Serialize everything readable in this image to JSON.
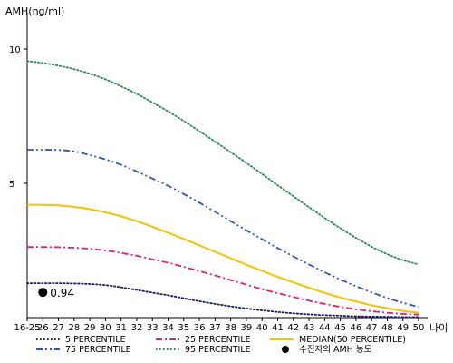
{
  "chart_data": {
    "type": "line",
    "ylabel": "AMH(ng/ml)",
    "xlabel": "나이",
    "categories": [
      "16-25",
      "26",
      "27",
      "28",
      "29",
      "30",
      "31",
      "32",
      "33",
      "34",
      "35",
      "36",
      "37",
      "38",
      "39",
      "40",
      "41",
      "42",
      "43",
      "44",
      "45",
      "46",
      "47",
      "48",
      "49",
      "50"
    ],
    "yticks": [
      5,
      10
    ],
    "ylim": [
      0,
      10.8
    ],
    "grid": false,
    "legend_position": "bottom",
    "series": [
      {
        "name": "5 PERCENTILE",
        "color": "#1a1a66",
        "style": "dotted",
        "values": [
          1.28,
          1.28,
          1.28,
          1.27,
          1.25,
          1.21,
          1.13,
          1.03,
          0.93,
          0.83,
          0.72,
          0.61,
          0.51,
          0.42,
          0.34,
          0.27,
          0.21,
          0.16,
          0.12,
          0.09,
          0.07,
          0.05,
          0.04,
          0.03,
          0.02,
          0.02
        ]
      },
      {
        "name": "25 PERCENTILE",
        "color": "#e0207a",
        "style": "dashdot",
        "values": [
          2.63,
          2.63,
          2.62,
          2.6,
          2.56,
          2.5,
          2.41,
          2.3,
          2.17,
          2.04,
          1.89,
          1.73,
          1.57,
          1.4,
          1.23,
          1.06,
          0.91,
          0.77,
          0.63,
          0.51,
          0.4,
          0.31,
          0.24,
          0.18,
          0.14,
          0.11
        ]
      },
      {
        "name": "MEDIAN(50 PERCENTILE)",
        "color": "#f5c400",
        "style": "solid",
        "values": [
          4.2,
          4.2,
          4.18,
          4.12,
          4.04,
          3.92,
          3.77,
          3.59,
          3.38,
          3.16,
          2.93,
          2.69,
          2.45,
          2.21,
          1.97,
          1.74,
          1.52,
          1.31,
          1.11,
          0.92,
          0.75,
          0.6,
          0.46,
          0.35,
          0.25,
          0.18
        ]
      },
      {
        "name": "75 PERCENTILE",
        "color": "#3355bb",
        "style": "dashdotdot",
        "values": [
          6.25,
          6.25,
          6.24,
          6.19,
          6.05,
          5.89,
          5.69,
          5.44,
          5.18,
          4.91,
          4.6,
          4.28,
          3.94,
          3.59,
          3.25,
          2.92,
          2.59,
          2.28,
          1.98,
          1.69,
          1.42,
          1.17,
          0.94,
          0.73,
          0.55,
          0.4
        ]
      },
      {
        "name": "95 PERCENTILE",
        "color": "#2e8b57",
        "style": "dotted",
        "values": [
          9.55,
          9.48,
          9.38,
          9.25,
          9.08,
          8.87,
          8.61,
          8.33,
          8.01,
          7.68,
          7.32,
          6.94,
          6.55,
          6.16,
          5.76,
          5.35,
          4.93,
          4.52,
          4.11,
          3.71,
          3.33,
          2.97,
          2.64,
          2.36,
          2.14,
          1.98
        ]
      }
    ],
    "marker": {
      "name": "수진자의 AMH 농도",
      "x": "26",
      "y": 0.94,
      "label": "0.94",
      "color": "#000000"
    }
  }
}
